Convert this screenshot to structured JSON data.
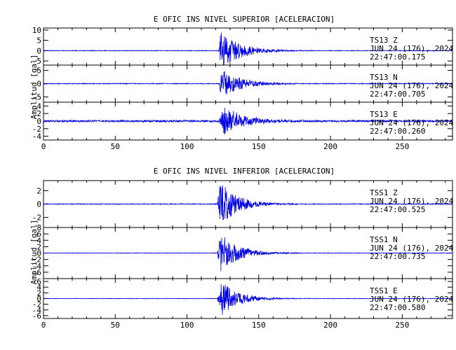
{
  "chart_data": [
    {
      "type": "line",
      "title": "E OFIC INS NIVEL SUPERIOR [ACELERACION]",
      "ylabel": "Amplitud [gal]",
      "xlim": [
        0,
        285
      ],
      "x_ticks": [
        "0",
        "50",
        "100",
        "150",
        "200",
        "250"
      ],
      "line_color": "#0000e6",
      "panels": [
        {
          "ylim": [
            -7,
            11
          ],
          "y_ticks": [
            "-5",
            "0",
            "5",
            "10"
          ],
          "station": "TS13",
          "component": "Z",
          "date": "JUN 24 (176), 2024",
          "time": "22:47:00.175",
          "event": {
            "onset_s": 122,
            "peak_s": 123.5,
            "peak_gal": 9.5,
            "duration_s": 55,
            "noise_gal": 0.15
          }
        },
        {
          "ylim": [
            -7,
            7
          ],
          "y_ticks": [
            "-5",
            "0",
            "5"
          ],
          "station": "TS13",
          "component": "N",
          "date": "JUN 24 (176), 2024",
          "time": "22:47:00.705",
          "event": {
            "onset_s": 122,
            "peak_s": 124,
            "peak_gal": 5.5,
            "duration_s": 55,
            "noise_gal": 0.15
          }
        },
        {
          "ylim": [
            -5,
            5
          ],
          "y_ticks": [
            "-4",
            "-2",
            "0",
            "2",
            "4"
          ],
          "station": "TS13",
          "component": "E",
          "date": "JUN 24 (176), 2024",
          "time": "22:47:00.260",
          "event": {
            "onset_s": 122,
            "peak_s": 126,
            "peak_gal": 3.9,
            "duration_s": 60,
            "noise_gal": 0.25
          }
        }
      ]
    },
    {
      "type": "line",
      "title": "E OFIC INS NIVEL INFERIOR [ACELERACION]",
      "ylabel": "Amplitud [gal]",
      "xlim": [
        0,
        285
      ],
      "x_ticks": [
        "0",
        "50",
        "100",
        "150",
        "200",
        "250"
      ],
      "line_color": "#0000e6",
      "panels": [
        {
          "ylim": [
            -3.5,
            3.5
          ],
          "y_ticks": [
            "-2",
            "0",
            "2"
          ],
          "station": "TSS1",
          "component": "Z",
          "date": "JUN 24 (176), 2024",
          "time": "22:47:00.525",
          "event": {
            "onset_s": 121,
            "peak_s": 123,
            "peak_gal": 3.5,
            "duration_s": 50,
            "noise_gal": 0.06
          }
        },
        {
          "ylim": [
            -8,
            8
          ],
          "y_ticks": [
            "-6",
            "-4",
            "-2",
            "0",
            "2",
            "4",
            "6",
            "8"
          ],
          "station": "TSS1",
          "component": "N",
          "date": "JUN 24 (176), 2024",
          "time": "22:47:00.735",
          "event": {
            "onset_s": 121,
            "peak_s": 123,
            "peak_gal": 6.5,
            "duration_s": 50,
            "noise_gal": 0.08
          }
        },
        {
          "ylim": [
            -7,
            7
          ],
          "y_ticks": [
            "-6",
            "-4",
            "-2",
            "0",
            "2",
            "4",
            "6"
          ],
          "station": "TSS1",
          "component": "E",
          "date": "JUN 24 (176), 2024",
          "time": "22:47:00.580",
          "event": {
            "onset_s": 121,
            "peak_s": 124,
            "peak_gal": 6.0,
            "duration_s": 50,
            "noise_gal": 0.08
          }
        }
      ]
    }
  ]
}
